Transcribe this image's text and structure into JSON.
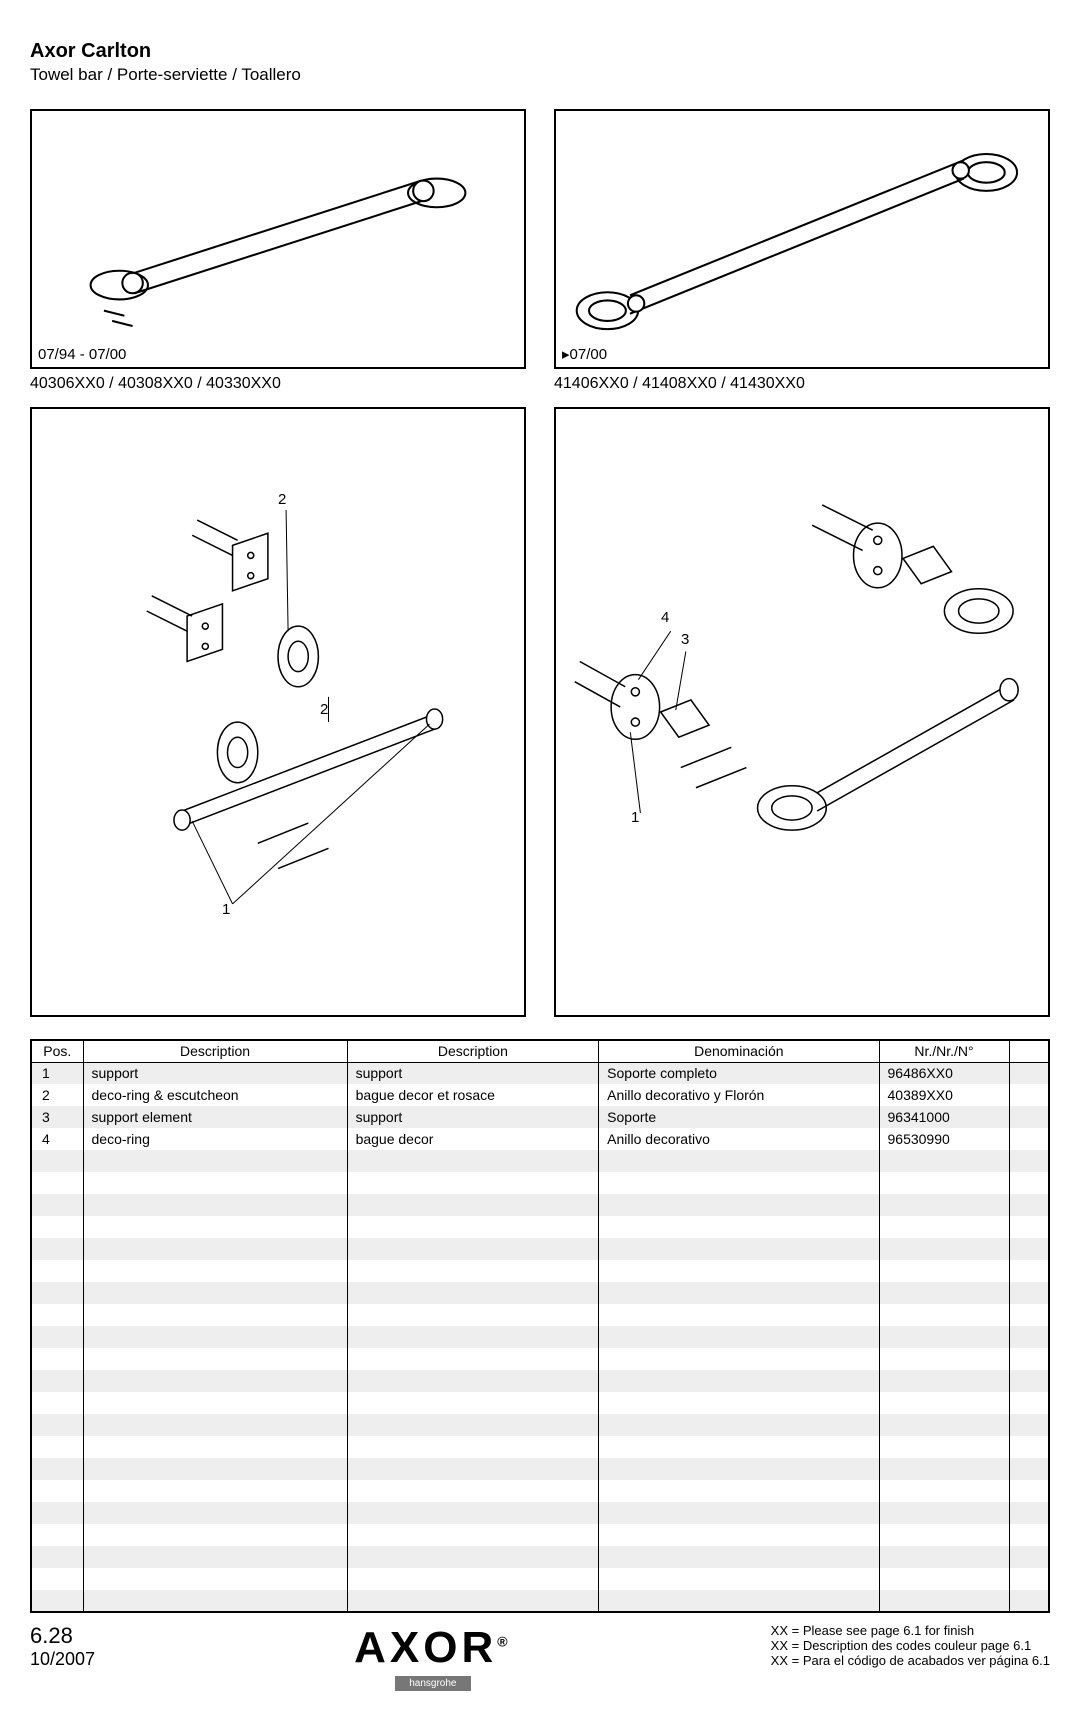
{
  "header": {
    "title": "Axor Carlton",
    "subtitle": "Towel bar / Porte-serviette / Toallero"
  },
  "topLeft": {
    "date": "07/94 - 07/00",
    "codes": "40306XX0 / 40308XX0 / 40330XX0"
  },
  "topRight": {
    "date": "07/00",
    "codes": "41406XX0 / 41408XX0 / 41430XX0"
  },
  "calloutsLeft": {
    "a": "2",
    "b": "2",
    "c": "1"
  },
  "calloutsRight": {
    "a": "4",
    "b": "3",
    "c": "1"
  },
  "table": {
    "headers": [
      "Pos.",
      "Description",
      "Description",
      "Denominación",
      "Nr./Nr./N°",
      ""
    ],
    "rows": [
      [
        "1",
        "support",
        "support",
        "Soporte completo",
        "96486XX0",
        ""
      ],
      [
        "2",
        "deco-ring & escutcheon",
        "bague decor et rosace",
        "Anillo decorativo y Florón",
        "40389XX0",
        ""
      ],
      [
        "3",
        "support element",
        "support",
        "Soporte",
        "96341000",
        ""
      ],
      [
        "4",
        "deco-ring",
        "bague decor",
        "Anillo decorativo",
        "96530990",
        ""
      ]
    ],
    "emptyRows": 21,
    "colWidths": [
      "52px",
      "auto",
      "auto",
      "auto",
      "130px",
      "40px"
    ]
  },
  "footer": {
    "pageBig": "6.28",
    "pageSmall": "10/2007",
    "logo": "AXOR",
    "logoReg": "®",
    "subBrand": "hansgrohe",
    "notes": [
      "XX = Please see page 6.1 for finish",
      "XX = Description des codes couleur page  6.1",
      "XX = Para el código de acabados ver página  6.1"
    ]
  },
  "style": {
    "stripeColor": "#eeeeee",
    "borderColor": "#000000",
    "background": "#ffffff",
    "fontSizes": {
      "title": 20,
      "sub": 17,
      "codes": 16,
      "table": 14,
      "footerNote": 13
    }
  }
}
